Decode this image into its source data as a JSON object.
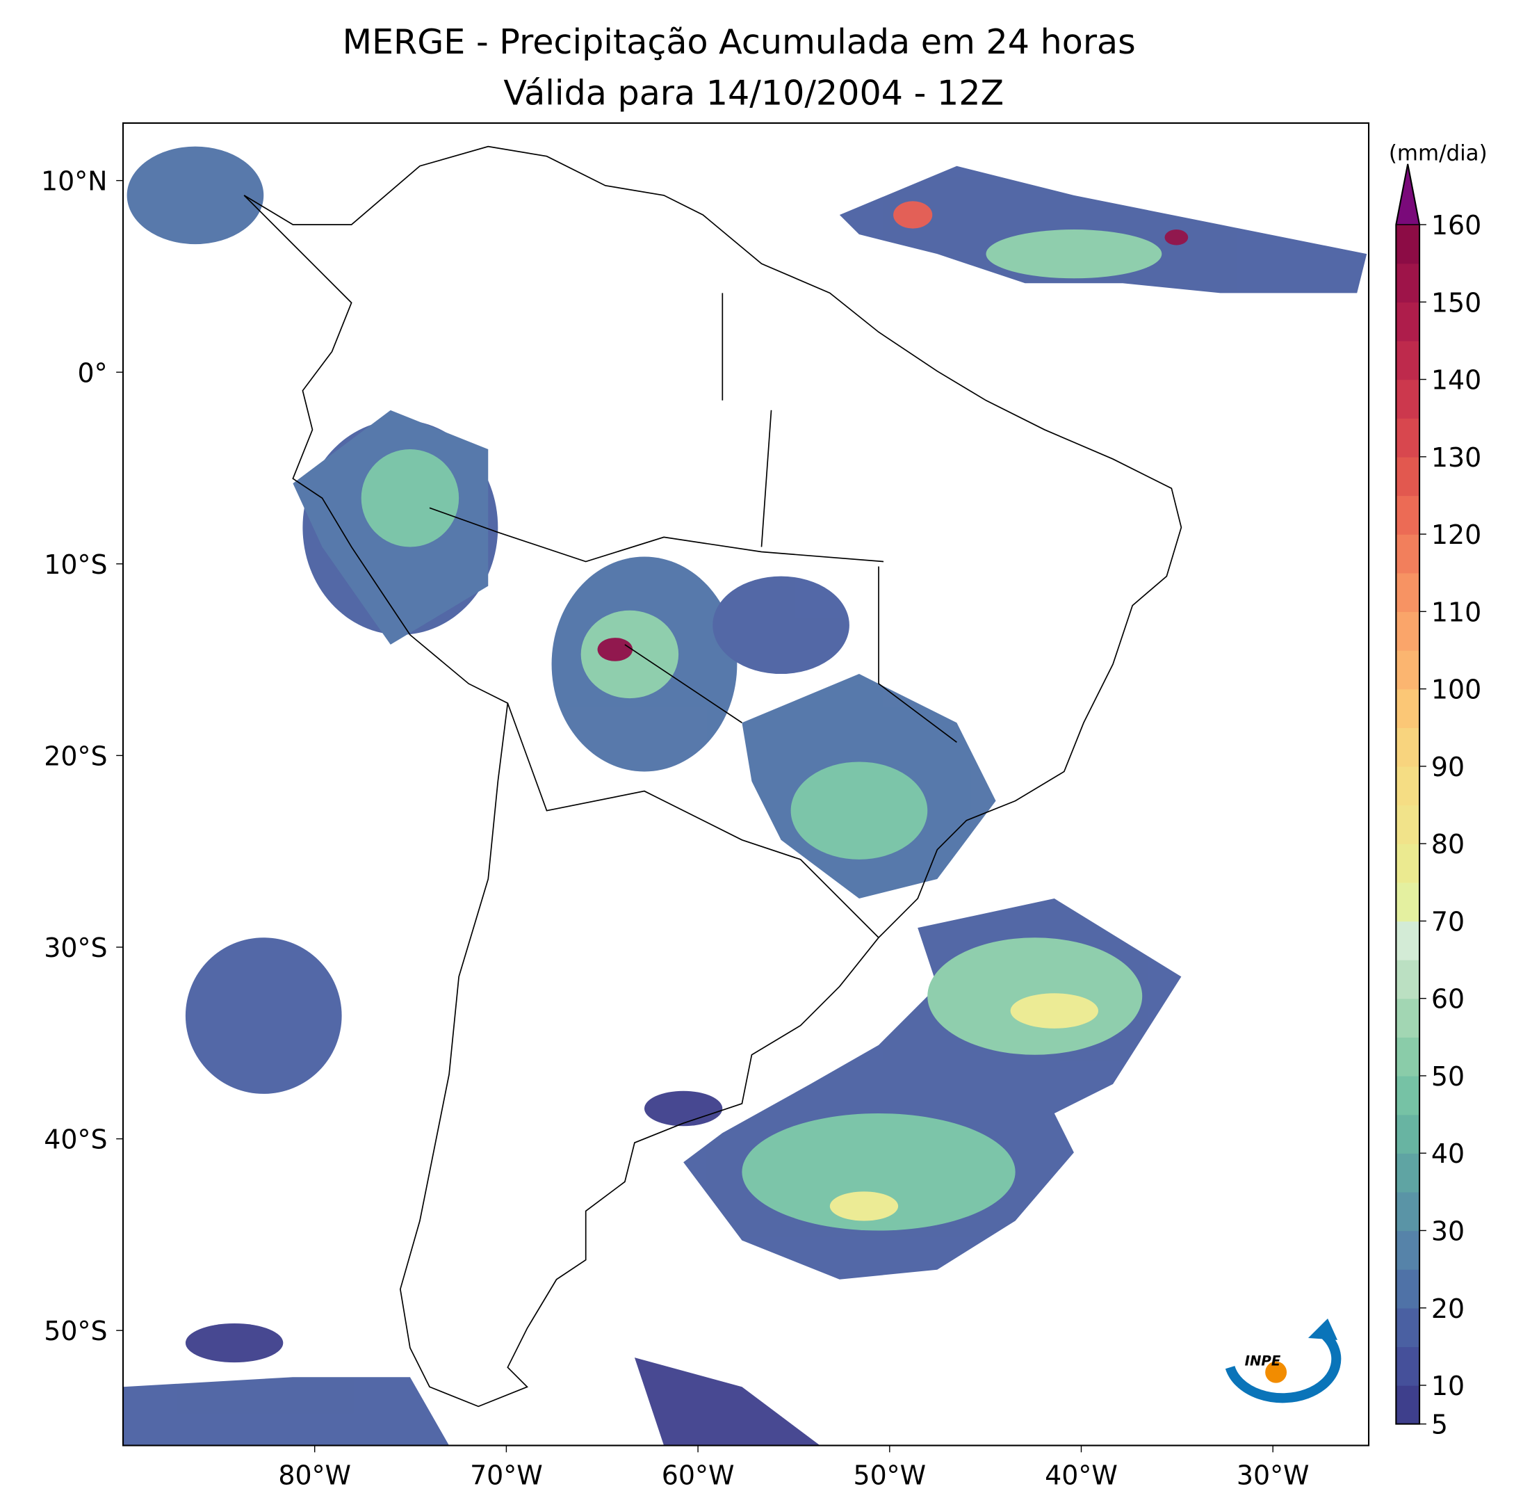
{
  "title": [
    "MERGE - Precipitação Acumulada em 24 horas",
    "Válida para 14/10/2004 - 12Z"
  ],
  "map": {
    "xlim": [
      -90,
      -25
    ],
    "ylim": [
      -56,
      13
    ],
    "xticks": [
      {
        "value": -80,
        "label": "80°W"
      },
      {
        "value": -70,
        "label": "70°W"
      },
      {
        "value": -60,
        "label": "60°W"
      },
      {
        "value": -50,
        "label": "50°W"
      },
      {
        "value": -40,
        "label": "40°W"
      },
      {
        "value": -30,
        "label": "30°W"
      }
    ],
    "yticks": [
      {
        "value": 10,
        "label": "10°N"
      },
      {
        "value": 0,
        "label": "0°"
      },
      {
        "value": -10,
        "label": "10°S"
      },
      {
        "value": -20,
        "label": "20°S"
      },
      {
        "value": -30,
        "label": "30°S"
      },
      {
        "value": -40,
        "label": "40°S"
      },
      {
        "value": -50,
        "label": "50°S"
      }
    ]
  },
  "colorbar": {
    "label": "(mm/dia)",
    "ticks": [
      5,
      10,
      20,
      30,
      40,
      50,
      60,
      70,
      80,
      90,
      100,
      110,
      120,
      130,
      140,
      150,
      160
    ],
    "colors": [
      "#3e3f8c",
      "#45509a",
      "#4a60a2",
      "#4f72a7",
      "#5683a9",
      "#5a94a6",
      "#5fa4a3",
      "#68b4a2",
      "#76c2a5",
      "#8acca9",
      "#a2d6b3",
      "#bbe0c2",
      "#d3ebd6",
      "#e4f0a0",
      "#ebea90",
      "#f1e38a",
      "#f5dd84",
      "#f8d47e",
      "#fbc776",
      "#fbb570",
      "#faa56a",
      "#f79363",
      "#f27f5c",
      "#ec6b55",
      "#e2584f",
      "#d8474e",
      "#cc384d",
      "#be2a4c",
      "#ae1d4b",
      "#9e1449",
      "#8c0c45"
    ],
    "extend_color": "#7a0a7a"
  },
  "logo": "INPE"
}
